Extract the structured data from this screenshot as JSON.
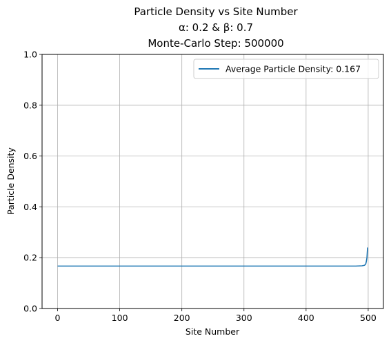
{
  "chart_data": {
    "type": "line",
    "title_lines": [
      "Particle Density vs Site Number",
      "α: 0.2 & β: 0.7",
      "Monte-Carlo Step: 500000"
    ],
    "xlabel": "Site Number",
    "ylabel": "Particle Density",
    "xlim": [
      -25,
      524.5
    ],
    "ylim": [
      0.0,
      1.0
    ],
    "xticks": [
      0,
      100,
      200,
      300,
      400,
      500
    ],
    "yticks": [
      0.0,
      0.2,
      0.4,
      0.6,
      0.8,
      1.0
    ],
    "xtick_labels": [
      "0",
      "100",
      "200",
      "300",
      "400",
      "500"
    ],
    "ytick_labels": [
      "0.0",
      "0.2",
      "0.4",
      "0.6",
      "0.8",
      "1.0"
    ],
    "grid": true,
    "legend_position": "upper right",
    "series": [
      {
        "name": "Average Particle Density: 0.167",
        "color": "#1f77b4",
        "x": [
          0,
          100,
          200,
          300,
          400,
          480,
          490,
          494,
          496,
          497,
          498,
          499
        ],
        "y": [
          0.167,
          0.167,
          0.167,
          0.167,
          0.167,
          0.167,
          0.168,
          0.17,
          0.175,
          0.185,
          0.2,
          0.24
        ]
      }
    ]
  }
}
